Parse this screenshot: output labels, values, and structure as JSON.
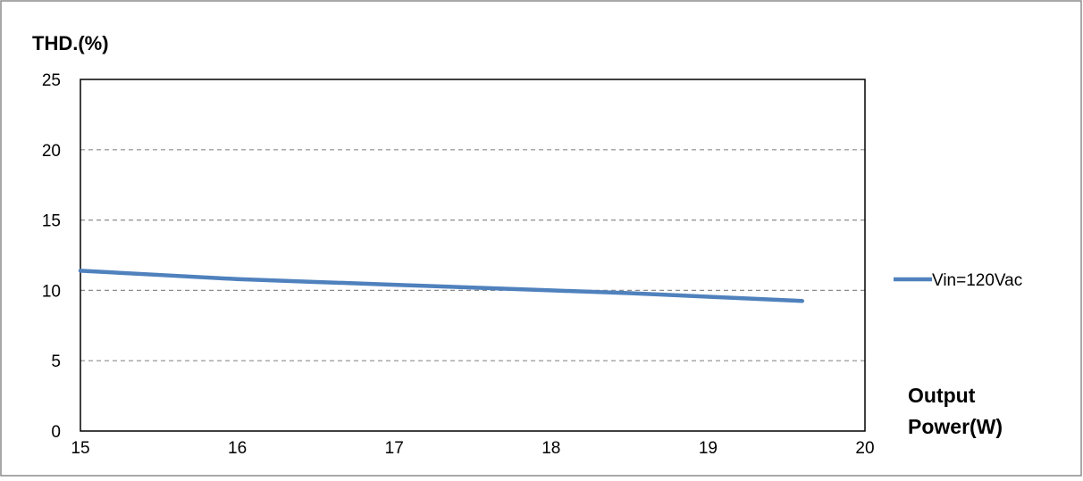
{
  "chart_data": {
    "type": "line",
    "ylabel": "THD.(%)",
    "xlabel_lines": [
      "Output",
      "Power(W)"
    ],
    "xlim": [
      15,
      20
    ],
    "ylim": [
      0,
      25
    ],
    "x_ticks": [
      15,
      16,
      17,
      18,
      19,
      20
    ],
    "y_ticks": [
      0,
      5,
      10,
      15,
      20,
      25
    ],
    "grid": "horizontal-dashed",
    "legend_position": "right",
    "series": [
      {
        "name": "Vin=120Vac",
        "color": "#4f81bd",
        "x": [
          15,
          15.5,
          16,
          16.5,
          17,
          17.5,
          18,
          18.5,
          19,
          19.6
        ],
        "y": [
          11.4,
          11.1,
          10.8,
          10.6,
          10.4,
          10.2,
          10.0,
          9.8,
          9.55,
          9.25
        ]
      }
    ]
  }
}
